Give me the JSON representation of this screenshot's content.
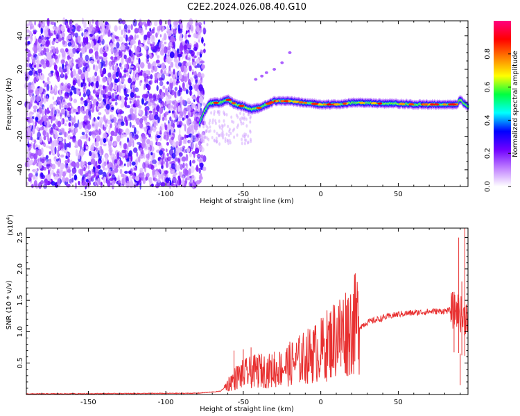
{
  "title": "C2E2.2024.026.08.40.G10",
  "chart_data": [
    {
      "type": "heatmap",
      "xlabel": "Height of straight line (km)",
      "ylabel": "Frequency (Hz)",
      "xlim": [
        -190,
        95
      ],
      "ylim": [
        -50,
        49
      ],
      "xticks": [
        -150,
        -100,
        -50,
        0,
        50
      ],
      "yticks": [
        -40,
        -20,
        0,
        20,
        40
      ],
      "colorbar": {
        "label": "Normalized spectral amplitude",
        "range": [
          0,
          1
        ],
        "ticks": [
          "0.0",
          "0.2",
          "0.4",
          "0.6",
          "0.8"
        ],
        "colors": [
          "#ffffff",
          "#c080ff",
          "#7000ff",
          "#0000ff",
          "#00ffff",
          "#00ff40",
          "#ffff00",
          "#ff8000",
          "#ff0000",
          "#ff0080"
        ]
      },
      "noise_region_x": [
        -190,
        -75
      ],
      "ridge": {
        "x": [
          -78,
          -75,
          -72,
          -70,
          -65,
          -60,
          -55,
          -50,
          -45,
          -40,
          -30,
          -20,
          -10,
          0,
          10,
          20,
          30,
          40,
          50,
          60,
          70,
          80,
          88,
          90,
          92,
          95
        ],
        "y": [
          -12,
          -5,
          -1,
          0,
          0,
          2,
          -1,
          -2,
          -4,
          -3,
          1,
          1,
          0,
          -1,
          -1,
          0,
          0,
          -0.5,
          -0.5,
          -1,
          -1,
          -1,
          -1,
          2,
          0,
          -2
        ]
      },
      "faint_streak": {
        "x": [
          -42,
          -38,
          -35,
          -30,
          -25,
          -20
        ],
        "y": [
          14,
          16,
          18,
          20,
          24,
          30
        ]
      }
    },
    {
      "type": "line",
      "xlabel": "Height of straight line (km)",
      "ylabel": "SNR (10 * v/v)",
      "exponent_label": "(x10",
      "exponent_power": "4",
      "exponent_close": ")",
      "xlim": [
        -190,
        95
      ],
      "ylim": [
        0,
        2.65
      ],
      "xticks": [
        -150,
        -100,
        -50,
        0,
        50
      ],
      "yticks": [
        "0.5",
        "1.0",
        "1.5",
        "2.0",
        "2.5"
      ],
      "color": "#e83030",
      "trend": {
        "x": [
          -190,
          -80,
          -65,
          -60,
          -55,
          -50,
          -40,
          -30,
          -20,
          -10,
          0,
          10,
          20,
          30,
          40,
          50,
          60,
          70,
          80,
          85,
          88,
          90,
          92,
          95
        ],
        "y": [
          0.01,
          0.02,
          0.05,
          0.15,
          0.25,
          0.3,
          0.35,
          0.35,
          0.45,
          0.55,
          0.65,
          0.85,
          1.0,
          1.15,
          1.22,
          1.28,
          1.3,
          1.32,
          1.33,
          1.34,
          1.35,
          1.3,
          1.2,
          1.3
        ]
      },
      "spikes": {
        "x": [
          -56,
          -50,
          -45,
          -40,
          -30,
          -20,
          -5,
          6,
          13,
          86,
          89,
          90,
          91,
          93
        ],
        "y": [
          0.7,
          0.72,
          0.75,
          0.65,
          0.68,
          0.7,
          1.0,
          1.02,
          0.9,
          1.6,
          2.5,
          0.15,
          1.8,
          2.7
        ]
      }
    }
  ]
}
